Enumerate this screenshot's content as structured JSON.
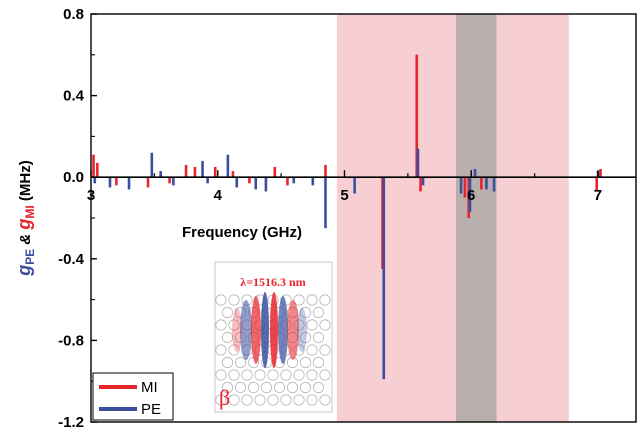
{
  "chart_data": {
    "type": "bar",
    "xlabel": "Frequency (GHz)",
    "ylabel_parts": {
      "pe": "g",
      "pe_sub": "PE",
      "amp": " & ",
      "mi": "g",
      "mi_sub": "MI",
      "unit": " (MHz)"
    },
    "xlim": [
      3,
      7.3
    ],
    "ylim": [
      -1.2,
      0.8
    ],
    "x_ticks": [
      {
        "value": 3,
        "label": "3"
      },
      {
        "value": 4,
        "label": "4"
      },
      {
        "value": 5,
        "label": "5"
      },
      {
        "value": 6,
        "label": "6"
      },
      {
        "value": 7,
        "label": "7"
      }
    ],
    "y_ticks": [
      {
        "value": 0.8,
        "label": "0.8"
      },
      {
        "value": 0.4,
        "label": "0.4"
      },
      {
        "value": 0.0,
        "label": "0.0"
      },
      {
        "value": -0.4,
        "label": "-0.4"
      },
      {
        "value": -0.8,
        "label": "-0.8"
      },
      {
        "value": -1.2,
        "label": "-1.2"
      }
    ],
    "shaded_regions": [
      {
        "x0": 4.94,
        "x1": 6.77,
        "color": "#f7cfd3"
      },
      {
        "x0": 5.88,
        "x1": 6.2,
        "color": "#b9aeae"
      }
    ],
    "series": [
      {
        "name": "MI",
        "color": "#e8242b",
        "points": [
          [
            3.02,
            0.11
          ],
          [
            3.05,
            0.07
          ],
          [
            3.2,
            -0.04
          ],
          [
            3.45,
            -0.05
          ],
          [
            3.62,
            -0.03
          ],
          [
            3.75,
            0.06
          ],
          [
            3.82,
            0.05
          ],
          [
            3.98,
            0.05
          ],
          [
            4.12,
            0.03
          ],
          [
            4.25,
            -0.03
          ],
          [
            4.45,
            0.05
          ],
          [
            4.55,
            -0.04
          ],
          [
            4.85,
            0.06
          ],
          [
            5.3,
            -0.45
          ],
          [
            5.57,
            0.6
          ],
          [
            5.6,
            -0.07
          ],
          [
            5.95,
            -0.1
          ],
          [
            5.98,
            -0.2
          ],
          [
            6.08,
            -0.06
          ],
          [
            6.99,
            -0.07
          ],
          [
            7.02,
            0.04
          ]
        ]
      },
      {
        "name": "PE",
        "color": "#3a4f9f",
        "points": [
          [
            3.03,
            -0.03
          ],
          [
            3.15,
            -0.05
          ],
          [
            3.3,
            -0.06
          ],
          [
            3.48,
            0.12
          ],
          [
            3.55,
            0.03
          ],
          [
            3.65,
            -0.04
          ],
          [
            3.88,
            0.08
          ],
          [
            3.92,
            -0.03
          ],
          [
            4.08,
            0.11
          ],
          [
            4.15,
            -0.05
          ],
          [
            4.3,
            -0.06
          ],
          [
            4.38,
            -0.07
          ],
          [
            4.6,
            -0.03
          ],
          [
            4.75,
            -0.04
          ],
          [
            4.85,
            -0.25
          ],
          [
            5.08,
            -0.08
          ],
          [
            5.31,
            -0.99
          ],
          [
            5.58,
            0.14
          ],
          [
            5.62,
            -0.04
          ],
          [
            5.92,
            -0.08
          ],
          [
            5.99,
            -0.17
          ],
          [
            6.03,
            0.04
          ],
          [
            6.12,
            -0.06
          ],
          [
            6.18,
            -0.07
          ],
          [
            7.0,
            0.03
          ]
        ]
      }
    ],
    "legend": {
      "position": "bottom-left",
      "items": [
        "MI",
        "PE"
      ]
    },
    "inset": {
      "label": "λ=1516.3 nm",
      "tag": "β",
      "position": "lower-left"
    }
  }
}
